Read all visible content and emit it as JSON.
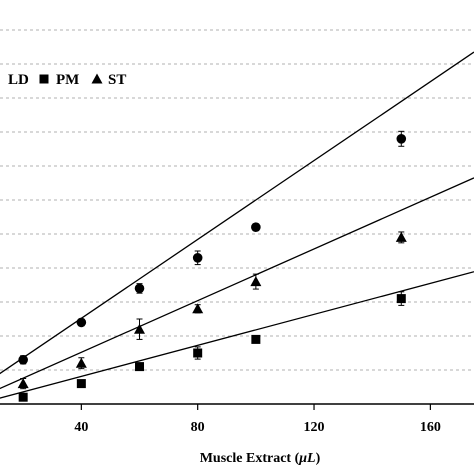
{
  "chart_data": {
    "type": "scatter",
    "xlabel_prefix": "Muscle Extract (",
    "xlabel_unit": "μL",
    "xlabel_suffix": ")",
    "ylabel": "",
    "x_ticks": [
      40,
      80,
      120,
      160
    ],
    "xlim": [
      0,
      175
    ],
    "ylim": [
      0,
      1.1
    ],
    "grid": "horizontal dashed",
    "legend_position": "top-left",
    "series": [
      {
        "name": "LD",
        "marker": "circle",
        "x": [
          20,
          40,
          60,
          80,
          100,
          150
        ],
        "y": [
          0.13,
          0.24,
          0.34,
          0.43,
          0.52,
          0.78
        ],
        "err": [
          0.012,
          0.01,
          0.014,
          0.02,
          0.01,
          0.022
        ],
        "fit": {
          "slope": 0.0058,
          "intercept": 0.02
        }
      },
      {
        "name": "PM",
        "marker": "square",
        "x": [
          20,
          40,
          60,
          80,
          100,
          150
        ],
        "y": [
          0.02,
          0.06,
          0.11,
          0.15,
          0.19,
          0.31
        ],
        "err": [
          0.008,
          0.006,
          0.01,
          0.018,
          0.01,
          0.02
        ],
        "fit": {
          "slope": 0.00228,
          "intercept": -0.01
        }
      },
      {
        "name": "ST",
        "marker": "triangle",
        "x": [
          20,
          40,
          60,
          80,
          100,
          150
        ],
        "y": [
          0.06,
          0.12,
          0.22,
          0.28,
          0.36,
          0.49
        ],
        "err": [
          0.015,
          0.016,
          0.03,
          0.012,
          0.022,
          0.016
        ],
        "fit": {
          "slope": 0.0038,
          "intercept": 0.0
        }
      }
    ]
  }
}
